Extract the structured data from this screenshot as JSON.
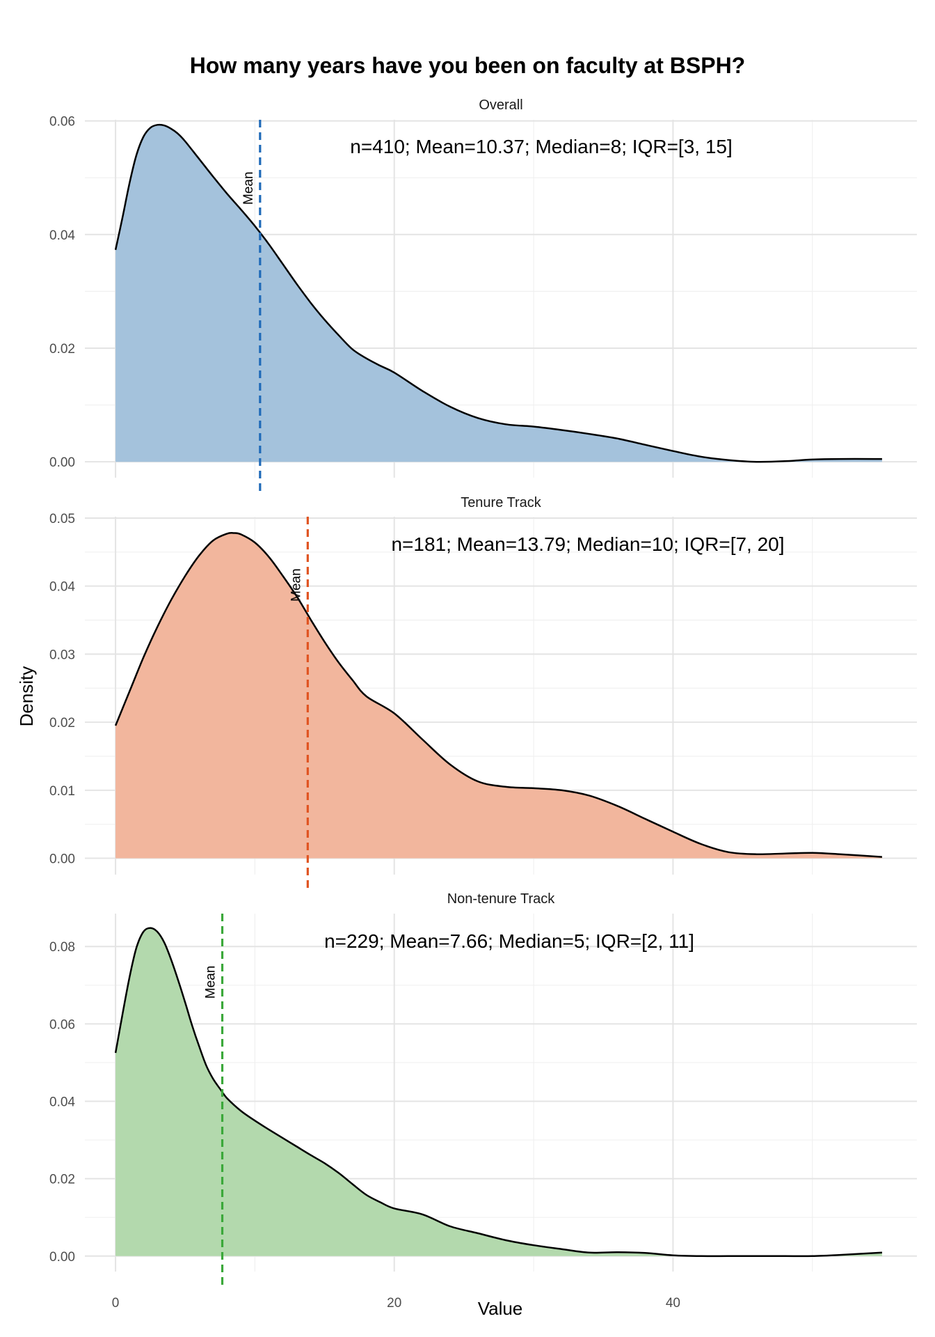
{
  "chart_data": {
    "type": "area",
    "title": "How many years have you been on faculty at BSPH?",
    "xlabel": "Value",
    "ylabel": "Density",
    "xlim": [
      -2.2,
      57.5
    ],
    "x_ticks": [
      0,
      20,
      40
    ],
    "grid": true,
    "panels": [
      {
        "name": "Overall",
        "fill": "#a4c2dc",
        "mean_color": "#1f6ab8",
        "mean": 10.37,
        "mean_label": "Mean",
        "annotation": "n=410; Mean=10.37; Median=8; IQR=[3, 15]",
        "ylim": [
          -0.0028,
          0.0602
        ],
        "y_ticks": [
          0,
          0.02,
          0.04,
          0.06
        ],
        "y_tick_labels": [
          "0.00",
          "0.02",
          "0.04",
          "0.06"
        ],
        "x": [
          0,
          0.5,
          1,
          1.5,
          2,
          2.5,
          3,
          3.5,
          4,
          4.5,
          5,
          6,
          7,
          8,
          9,
          10,
          11,
          12,
          13,
          14,
          15,
          16,
          17,
          18,
          19,
          20,
          22,
          24,
          26,
          28,
          30,
          32,
          34,
          36,
          38,
          40,
          42,
          44,
          46,
          48,
          50,
          52,
          55
        ],
        "values": [
          0.0373,
          0.043,
          0.049,
          0.054,
          0.0572,
          0.0588,
          0.0593,
          0.0592,
          0.0586,
          0.0577,
          0.0564,
          0.0533,
          0.0502,
          0.0472,
          0.0444,
          0.0415,
          0.0383,
          0.0348,
          0.0313,
          0.028,
          0.025,
          0.0223,
          0.0198,
          0.0182,
          0.0169,
          0.0157,
          0.0125,
          0.0097,
          0.0077,
          0.0066,
          0.0062,
          0.0056,
          0.0049,
          0.0041,
          0.003,
          0.0019,
          0.0009,
          0.0003,
          0.0,
          0.0001,
          0.0004,
          0.0005,
          0.0005
        ]
      },
      {
        "name": "Tenure Track",
        "fill": "#f2b69d",
        "mean_color": "#e05320",
        "mean": 13.79,
        "mean_label": "Mean",
        "annotation": "n=181; Mean=13.79; Median=10; IQR=[7, 20]",
        "ylim": [
          -0.0024,
          0.0502
        ],
        "y_ticks": [
          0,
          0.01,
          0.02,
          0.03,
          0.04,
          0.05
        ],
        "y_tick_labels": [
          "0.00",
          "0.01",
          "0.02",
          "0.03",
          "0.04",
          "0.05"
        ],
        "x": [
          0,
          1,
          2,
          3,
          4,
          5,
          6,
          7,
          8,
          8.5,
          9,
          10,
          11,
          12,
          13,
          14,
          15,
          16,
          17,
          18,
          20,
          22,
          24,
          26,
          28,
          30,
          32,
          34,
          36,
          38,
          40,
          42,
          44,
          46,
          48,
          50,
          52,
          55
        ],
        "values": [
          0.0195,
          0.0245,
          0.0295,
          0.034,
          0.038,
          0.0415,
          0.0445,
          0.0467,
          0.0477,
          0.0478,
          0.0476,
          0.0464,
          0.0443,
          0.0415,
          0.0385,
          0.0351,
          0.0318,
          0.0288,
          0.0262,
          0.0238,
          0.0213,
          0.0175,
          0.0138,
          0.0113,
          0.0105,
          0.0103,
          0.01,
          0.0092,
          0.0077,
          0.0058,
          0.0039,
          0.0021,
          0.0009,
          0.0006,
          0.0007,
          0.0008,
          0.0006,
          0.0002
        ]
      },
      {
        "name": "Non-tenure Track",
        "fill": "#b3d9ad",
        "mean_color": "#3ba83a",
        "mean": 7.66,
        "mean_label": "Mean",
        "annotation": "n=229; Mean=7.66; Median=5; IQR=[2, 11]",
        "ylim": [
          -0.004,
          0.0885
        ],
        "y_ticks": [
          0,
          0.02,
          0.04,
          0.06,
          0.08
        ],
        "y_tick_labels": [
          "0.00",
          "0.02",
          "0.04",
          "0.06",
          "0.08"
        ],
        "x": [
          0,
          0.5,
          1,
          1.5,
          2,
          2.5,
          3,
          3.5,
          4,
          4.5,
          5,
          5.5,
          6,
          6.5,
          7,
          7.5,
          8,
          9,
          10,
          11,
          12,
          13,
          14,
          15,
          16,
          17,
          18,
          19,
          20,
          22,
          24,
          26,
          28,
          30,
          32,
          34,
          36,
          38,
          40,
          42,
          44,
          46,
          48,
          50,
          52,
          55
        ],
        "values": [
          0.0525,
          0.0625,
          0.072,
          0.0797,
          0.0838,
          0.0848,
          0.0838,
          0.081,
          0.0765,
          0.0712,
          0.0655,
          0.0595,
          0.0542,
          0.0493,
          0.0458,
          0.0432,
          0.0408,
          0.0375,
          0.035,
          0.0327,
          0.0305,
          0.0283,
          0.0261,
          0.024,
          0.0215,
          0.0186,
          0.0158,
          0.0139,
          0.0123,
          0.0108,
          0.0077,
          0.0059,
          0.0041,
          0.0028,
          0.0018,
          0.0009,
          0.001,
          0.0008,
          0.0002,
          0.0,
          0.0,
          0.0,
          0.0,
          0.0,
          0.0003,
          0.0009
        ]
      }
    ]
  }
}
